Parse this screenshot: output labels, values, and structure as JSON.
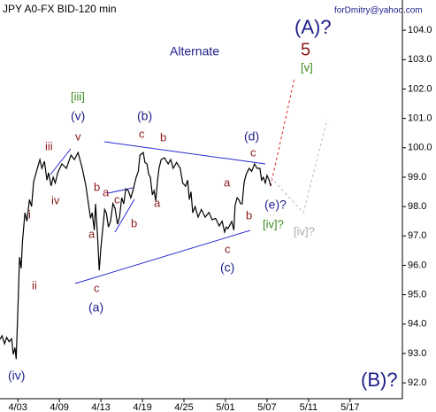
{
  "chart_data": {
    "type": "line",
    "title": "JPY A0-FX BID-120 min",
    "watermark": "forDmitry@yahoo.com",
    "color": "#000000",
    "grid": false,
    "x": [
      0.57,
      0.62,
      0.68,
      0.73,
      0.79,
      0.85,
      0.89,
      0.93,
      0.96,
      1.0,
      1.04,
      1.08,
      1.11,
      1.17,
      1.22,
      1.28,
      1.33,
      1.38,
      1.45,
      1.53,
      1.58,
      1.64,
      1.7,
      1.74,
      1.8,
      1.85,
      1.9,
      1.96,
      2.06,
      2.17,
      2.28,
      2.36,
      2.45,
      2.55,
      2.64,
      2.7,
      2.75,
      2.79,
      2.84,
      2.87,
      2.92,
      2.96,
      3.0,
      3.04,
      3.09,
      3.13,
      3.18,
      3.23,
      3.29,
      3.34,
      3.4,
      3.45,
      3.5,
      3.55,
      3.6,
      3.66,
      3.72,
      3.77,
      3.85,
      3.9,
      3.94,
      4.02,
      4.06,
      4.11,
      4.15,
      4.19,
      4.24,
      4.28,
      4.32,
      4.36,
      4.4,
      4.45,
      4.53,
      4.62,
      4.68,
      4.74,
      4.82,
      4.91,
      4.97,
      5.04,
      5.09,
      5.13,
      5.17,
      5.21,
      5.27,
      5.34,
      5.42,
      5.51,
      5.6,
      5.68,
      5.76,
      5.85,
      5.92,
      5.98,
      6.02,
      6.06,
      6.15,
      6.2,
      6.23,
      6.28,
      6.32,
      6.36,
      6.4,
      6.45,
      6.5,
      6.57,
      6.63,
      6.7,
      6.76,
      6.83,
      6.87,
      6.91,
      6.96,
      7.0,
      7.05,
      7.09
    ],
    "values": [
      93.48,
      93.6,
      93.33,
      93.55,
      93.4,
      93.5,
      92.97,
      93.2,
      92.81,
      94.47,
      96.28,
      95.9,
      96.8,
      97.79,
      97.5,
      98.24,
      98.0,
      98.84,
      99.2,
      99.6,
      99.3,
      99.54,
      98.9,
      99.15,
      98.7,
      99.0,
      98.8,
      99.15,
      99.45,
      99.3,
      99.75,
      99.6,
      99.84,
      99.3,
      98.69,
      98.09,
      97.6,
      97.79,
      97.2,
      98.09,
      97.0,
      95.83,
      96.6,
      97.19,
      97.9,
      97.79,
      97.3,
      97.49,
      98.1,
      97.94,
      97.4,
      97.64,
      98.3,
      98.09,
      98.6,
      98.54,
      98.3,
      98.54,
      99.0,
      99.2,
      99.75,
      99.84,
      99.5,
      99.45,
      99.1,
      99.0,
      98.4,
      98.54,
      98.2,
      98.84,
      99.3,
      99.6,
      99.66,
      99.45,
      99.6,
      99.3,
      99.5,
      99.3,
      98.8,
      98.69,
      98.9,
      98.24,
      98.5,
      97.79,
      98.0,
      97.64,
      97.9,
      97.64,
      97.8,
      97.55,
      97.6,
      97.34,
      97.5,
      97.13,
      97.3,
      97.25,
      97.49,
      97.2,
      98.03,
      98.3,
      98.24,
      98.1,
      98.09,
      98.84,
      99.1,
      99.3,
      99.2,
      99.45,
      99.3,
      99.3,
      98.9,
      99.0,
      98.8,
      99.06,
      98.9,
      98.69
    ],
    "xlim": [
      0.57,
      10.26
    ],
    "xticks": [
      {
        "value": 1,
        "label": "4/03"
      },
      {
        "value": 2,
        "label": "4/09"
      },
      {
        "value": 3,
        "label": "4/13"
      },
      {
        "value": 4,
        "label": "4/19"
      },
      {
        "value": 5,
        "label": "4/25"
      },
      {
        "value": 6,
        "label": "5/01"
      },
      {
        "value": 7,
        "label": "5/07"
      },
      {
        "value": 8,
        "label": "5/11"
      },
      {
        "value": 9,
        "label": "5/17"
      }
    ],
    "ylim": [
      91.46,
      105.03
    ],
    "yticks": [
      {
        "value": 92,
        "label": "92.0"
      },
      {
        "value": 93,
        "label": "93.0"
      },
      {
        "value": 94,
        "label": "94.0"
      },
      {
        "value": 95,
        "label": "95.0"
      },
      {
        "value": 96,
        "label": "96.0"
      },
      {
        "value": 97,
        "label": "97.0"
      },
      {
        "value": 98,
        "label": "98.0"
      },
      {
        "value": 99,
        "label": "99.0"
      },
      {
        "value": 100,
        "label": "100.0"
      },
      {
        "value": 101,
        "label": "101.0"
      },
      {
        "value": 102,
        "label": "102.0"
      },
      {
        "value": 103,
        "label": "103.0"
      },
      {
        "value": 104,
        "label": "104.0"
      }
    ],
    "annotations": [
      "(A)?",
      "5",
      "[v]",
      "Alternate",
      "[iii]",
      "(v)",
      "iii",
      "v",
      "iv",
      "i",
      "ii",
      "(iv)",
      "(b)",
      "c",
      "b",
      "b",
      "a",
      "c",
      "a",
      "b",
      "a",
      "c",
      "(a)",
      "(d)",
      "c",
      "a",
      "b",
      "c",
      "(c)",
      "(e)?",
      "[iv]?",
      "[iv]?",
      "(B)?"
    ]
  }
}
